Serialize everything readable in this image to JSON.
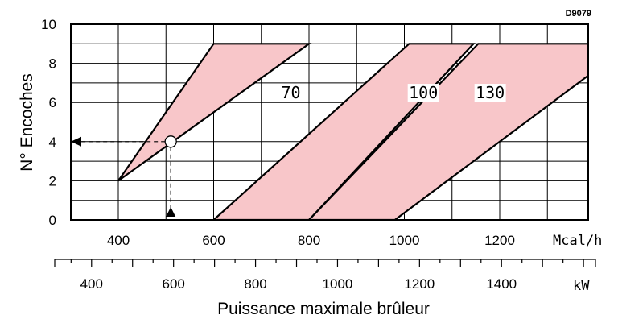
{
  "chart_data": {
    "type": "area",
    "code": "D9079",
    "ylabel": "N° Encoches",
    "xlabel": "Puissance maximale brûleur",
    "x_unit_primary": "Mcal/h",
    "x_unit_secondary": "kW",
    "xlim_mcal": [
      300,
      1550
    ],
    "ylim": [
      0,
      10
    ],
    "x_ticks_primary": [
      400,
      600,
      800,
      1000,
      1200
    ],
    "x_ticks_secondary": [
      400,
      600,
      800,
      1000,
      1200,
      1400
    ],
    "y_ticks": [
      0,
      2,
      4,
      6,
      8,
      10
    ],
    "grid": true,
    "series": [
      {
        "name": "70",
        "polygon": [
          [
            400,
            2
          ],
          [
            600,
            9
          ],
          [
            800,
            9
          ]
        ]
      },
      {
        "name": "100",
        "polygon": [
          [
            600,
            0
          ],
          [
            1010,
            9
          ],
          [
            1145,
            9
          ],
          [
            800,
            0
          ]
        ]
      },
      {
        "name": "130",
        "polygon": [
          [
            800,
            0
          ],
          [
            1155,
            9
          ],
          [
            1475,
            9
          ],
          [
            980,
            0
          ]
        ]
      }
    ],
    "example": {
      "x": 510,
      "y": 4
    }
  }
}
